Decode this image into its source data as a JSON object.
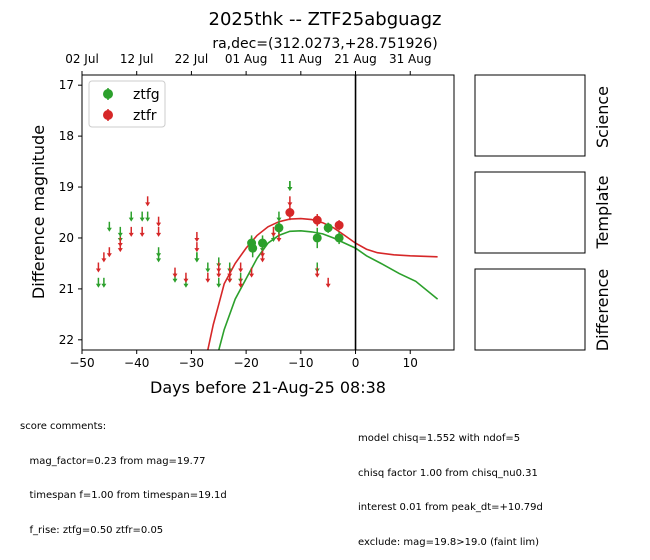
{
  "chart_data": {
    "type": "scatter",
    "title": "2025thk -- ZTF25abguagz",
    "subtitle": "ra,dec=(312.0273,+28.751926)",
    "xlabel": "Days before 21-Aug-25 08:38",
    "ylabel": "Difference magnitude",
    "xlim": [
      -50,
      18
    ],
    "ylim": [
      22.2,
      16.8
    ],
    "y_inverted": true,
    "xticks": [
      -50,
      -40,
      -30,
      -20,
      -10,
      0,
      10
    ],
    "yticks": [
      17,
      18,
      19,
      20,
      21,
      22
    ],
    "top_axis_ticks": [
      {
        "x": -50,
        "label": "02 Jul"
      },
      {
        "x": -40,
        "label": "12 Jul"
      },
      {
        "x": -30,
        "label": "22 Jul"
      },
      {
        "x": -20,
        "label": "01 Aug"
      },
      {
        "x": -10,
        "label": "11 Aug"
      },
      {
        "x": 0,
        "label": "21 Aug"
      },
      {
        "x": 10,
        "label": "31 Aug"
      }
    ],
    "vline_x": 0,
    "legend_position": "upper-left",
    "grid": false,
    "series": [
      {
        "name": "ztfg",
        "color": "#2ca02c",
        "upper_limits": [
          [
            -47,
            20.9
          ],
          [
            -46,
            20.9
          ],
          [
            -45,
            19.8
          ],
          [
            -43,
            20.0
          ],
          [
            -43,
            19.9
          ],
          [
            -41,
            19.6
          ],
          [
            -39,
            19.6
          ],
          [
            -38,
            19.6
          ],
          [
            -36,
            20.3
          ],
          [
            -36,
            20.4
          ],
          [
            -33,
            20.8
          ],
          [
            -31,
            20.9
          ],
          [
            -29,
            20.4
          ],
          [
            -29,
            20.4
          ],
          [
            -27,
            20.6
          ],
          [
            -25,
            20.5
          ],
          [
            -25,
            20.9
          ],
          [
            -23,
            20.6
          ],
          [
            -23,
            20.8
          ],
          [
            -21,
            20.8
          ],
          [
            -19,
            20.1
          ],
          [
            -17,
            20.2
          ],
          [
            -15,
            20.0
          ],
          [
            -14,
            19.6
          ],
          [
            -14,
            19.8
          ],
          [
            -12,
            19.0
          ],
          [
            -12,
            19.0
          ],
          [
            -7,
            20.6
          ]
        ],
        "detections": [
          {
            "x": -19,
            "y": 20.1,
            "err": 0.15
          },
          {
            "x": -18.8,
            "y": 20.2,
            "err": 0.18
          },
          {
            "x": -17,
            "y": 20.1,
            "err": 0.15
          },
          {
            "x": -14,
            "y": 19.8,
            "err": 0.12
          },
          {
            "x": -7,
            "y": 20.0,
            "err": 0.2
          },
          {
            "x": -5,
            "y": 19.8,
            "err": 0.1
          },
          {
            "x": -3,
            "y": 20.0,
            "err": 0.12
          }
        ],
        "model_curve": [
          [
            -25,
            22.2
          ],
          [
            -24,
            21.8
          ],
          [
            -22,
            21.2
          ],
          [
            -20,
            20.8
          ],
          [
            -18,
            20.4
          ],
          [
            -16,
            20.1
          ],
          [
            -14,
            19.95
          ],
          [
            -12,
            19.87
          ],
          [
            -10,
            19.86
          ],
          [
            -8,
            19.88
          ],
          [
            -6,
            19.92
          ],
          [
            -4,
            20.0
          ],
          [
            -2,
            20.1
          ],
          [
            0,
            20.2
          ],
          [
            2,
            20.35
          ],
          [
            5,
            20.52
          ],
          [
            8,
            20.7
          ],
          [
            11,
            20.85
          ],
          [
            15,
            21.2
          ]
        ]
      },
      {
        "name": "ztfr",
        "color": "#d62728",
        "upper_limits": [
          [
            -47,
            20.6
          ],
          [
            -46,
            20.4
          ],
          [
            -45,
            20.3
          ],
          [
            -43,
            20.2
          ],
          [
            -43,
            20.1
          ],
          [
            -41,
            19.9
          ],
          [
            -39,
            19.9
          ],
          [
            -38,
            19.3
          ],
          [
            -36,
            19.7
          ],
          [
            -36,
            19.9
          ],
          [
            -33,
            20.7
          ],
          [
            -31,
            20.8
          ],
          [
            -29,
            20.0
          ],
          [
            -29,
            20.2
          ],
          [
            -27,
            20.8
          ],
          [
            -25,
            20.7
          ],
          [
            -25,
            20.6
          ],
          [
            -23,
            20.8
          ],
          [
            -23,
            20.7
          ],
          [
            -21,
            20.9
          ],
          [
            -21,
            20.6
          ],
          [
            -19,
            20.7
          ],
          [
            -17,
            20.3
          ],
          [
            -17,
            20.4
          ],
          [
            -15,
            19.9
          ],
          [
            -14,
            20.0
          ],
          [
            -12,
            19.3
          ],
          [
            -7,
            20.7
          ],
          [
            -5,
            20.9
          ]
        ],
        "detections": [
          {
            "x": -12,
            "y": 19.5,
            "err": 0.15
          },
          {
            "x": -7,
            "y": 19.65,
            "err": 0.12
          },
          {
            "x": -3,
            "y": 19.75,
            "err": 0.1
          }
        ],
        "model_curve": [
          [
            -27,
            22.2
          ],
          [
            -26,
            21.7
          ],
          [
            -25,
            21.3
          ],
          [
            -24,
            20.9
          ],
          [
            -22,
            20.5
          ],
          [
            -20,
            20.2
          ],
          [
            -18,
            19.95
          ],
          [
            -16,
            19.78
          ],
          [
            -14,
            19.68
          ],
          [
            -12,
            19.63
          ],
          [
            -10,
            19.62
          ],
          [
            -8,
            19.64
          ],
          [
            -6,
            19.7
          ],
          [
            -4,
            19.8
          ],
          [
            -2,
            19.95
          ],
          [
            0,
            20.1
          ],
          [
            2,
            20.22
          ],
          [
            4,
            20.29
          ],
          [
            7,
            20.33
          ],
          [
            10,
            20.35
          ],
          [
            15,
            20.37
          ]
        ]
      }
    ]
  },
  "side_panels": {
    "science_label": "Science",
    "template_label": "Template",
    "difference_label": "Difference"
  },
  "comments": {
    "left": [
      "score comments:",
      "   mag_factor=0.23 from mag=19.77",
      "   timespan f=1.00 from timespan=19.1d",
      "   f_rise: ztfg=0.50 ztfr=0.05"
    ],
    "right": [
      "model chisq=1.552 with ndof=5",
      "chisq factor 1.00 from chisq_nu0.31",
      "interest 0.01 from peak_dt=+10.79d",
      "exclude: mag=19.8>19.0 (faint lim)"
    ]
  }
}
